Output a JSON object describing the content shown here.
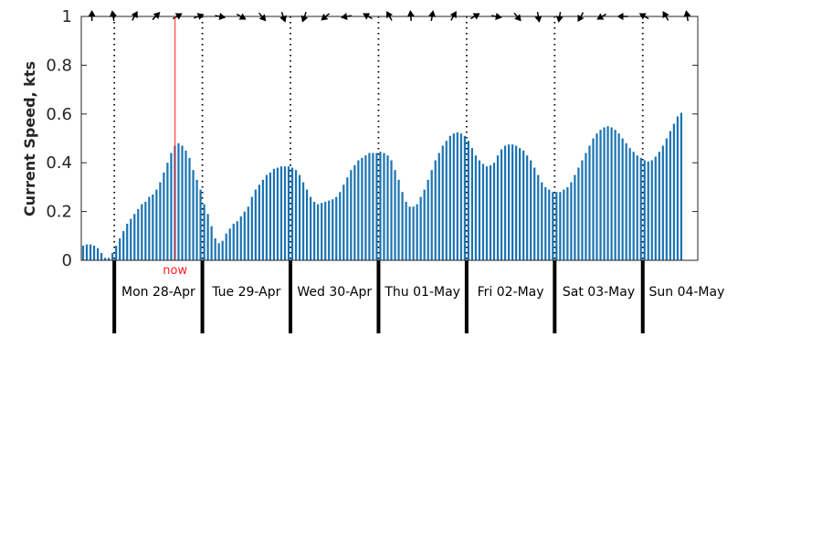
{
  "chart_data": {
    "type": "bar",
    "ylabel": "Current Speed, kts",
    "ylim": [
      0,
      1
    ],
    "yticks": [
      "0",
      "0.2",
      "0.4",
      "0.6",
      "0.8",
      "1"
    ],
    "days": [
      "Mon 28-Apr",
      "Tue 29-Apr",
      "Wed 30-Apr",
      "Thu 01-May",
      "Fri 02-May",
      "Sat 03-May",
      "Sun 04-May"
    ],
    "x_start_day_offset": -0.375,
    "x_end_day_offset": 6.625,
    "bar_interval_hours": 1,
    "values": [
      0.06,
      0.065,
      0.065,
      0.06,
      0.05,
      0.03,
      0.01,
      0.01,
      0.03,
      0.06,
      0.09,
      0.12,
      0.15,
      0.17,
      0.19,
      0.21,
      0.23,
      0.24,
      0.26,
      0.27,
      0.29,
      0.32,
      0.36,
      0.4,
      0.44,
      0.47,
      0.48,
      0.47,
      0.45,
      0.42,
      0.37,
      0.33,
      0.29,
      0.23,
      0.19,
      0.14,
      0.09,
      0.07,
      0.08,
      0.11,
      0.13,
      0.15,
      0.16,
      0.18,
      0.2,
      0.22,
      0.26,
      0.29,
      0.31,
      0.33,
      0.35,
      0.36,
      0.375,
      0.38,
      0.385,
      0.385,
      0.385,
      0.38,
      0.37,
      0.35,
      0.32,
      0.29,
      0.26,
      0.24,
      0.23,
      0.235,
      0.24,
      0.245,
      0.25,
      0.26,
      0.28,
      0.31,
      0.34,
      0.37,
      0.39,
      0.41,
      0.42,
      0.43,
      0.44,
      0.44,
      0.44,
      0.445,
      0.44,
      0.43,
      0.41,
      0.37,
      0.33,
      0.28,
      0.24,
      0.22,
      0.22,
      0.23,
      0.26,
      0.29,
      0.33,
      0.37,
      0.41,
      0.44,
      0.47,
      0.49,
      0.51,
      0.52,
      0.525,
      0.52,
      0.51,
      0.49,
      0.46,
      0.43,
      0.41,
      0.395,
      0.385,
      0.39,
      0.4,
      0.43,
      0.455,
      0.47,
      0.475,
      0.475,
      0.47,
      0.46,
      0.45,
      0.43,
      0.41,
      0.38,
      0.35,
      0.32,
      0.3,
      0.29,
      0.28,
      0.28,
      0.28,
      0.29,
      0.3,
      0.32,
      0.35,
      0.38,
      0.41,
      0.44,
      0.47,
      0.5,
      0.52,
      0.535,
      0.545,
      0.55,
      0.545,
      0.535,
      0.52,
      0.5,
      0.48,
      0.46,
      0.445,
      0.43,
      0.42,
      0.41,
      0.405,
      0.41,
      0.425,
      0.445,
      0.47,
      0.5,
      0.53,
      0.56,
      0.59,
      0.605
    ],
    "now_day_offset": 0.69,
    "now_label": "now",
    "direction_arrows": [
      0,
      350,
      30,
      45,
      60,
      70,
      100,
      120,
      140,
      160,
      200,
      230,
      260,
      300,
      330,
      355,
      10,
      30,
      60,
      100,
      140,
      170,
      190,
      210,
      240,
      270,
      300,
      330,
      350
    ],
    "colors": {
      "bar": "#1a73b3",
      "now": "#ff2020",
      "axis": "#262626",
      "text": "#000000"
    }
  }
}
